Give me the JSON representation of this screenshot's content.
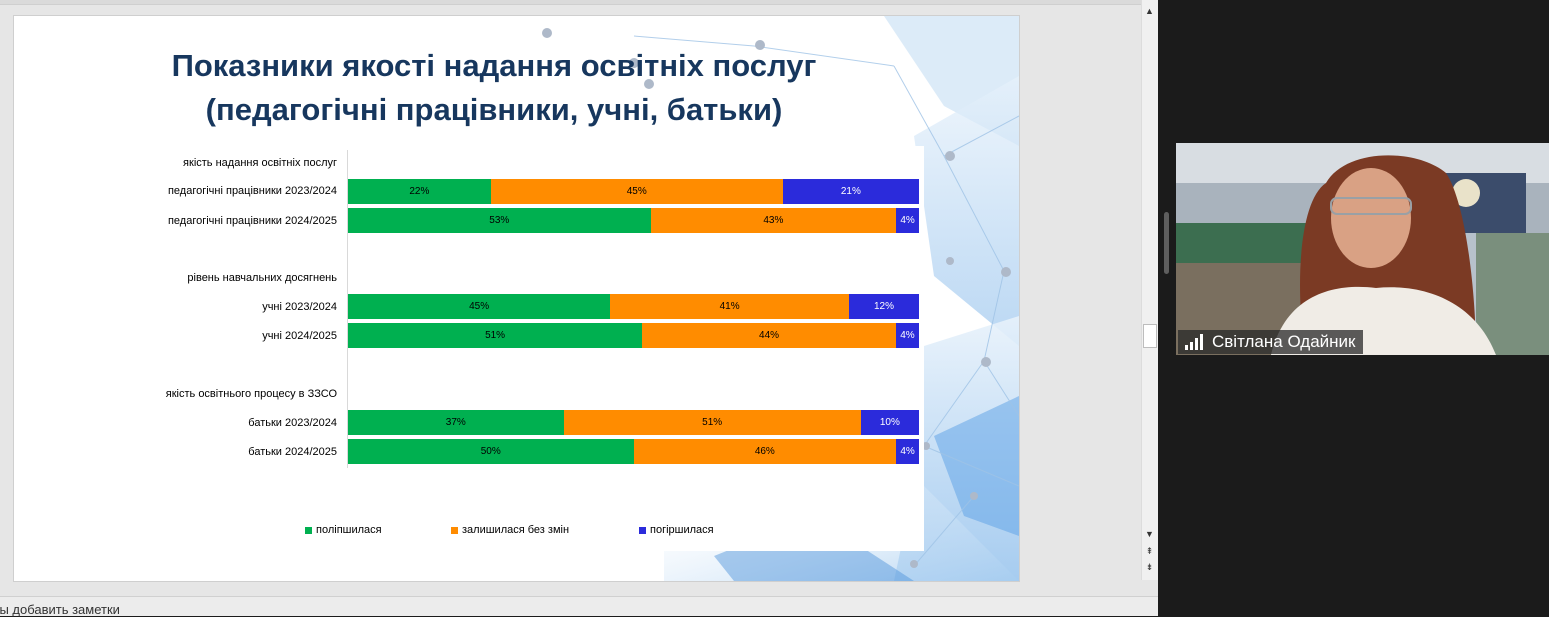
{
  "slide": {
    "title_line1": "Показники якості надання освітніх послуг",
    "title_line2": "(педагогічні працівники, учні, батьки)"
  },
  "chart_data": {
    "type": "bar",
    "orientation": "horizontal",
    "stacked": "100%",
    "group_headers": [
      "якість надання освітніх послуг",
      "рівень навчальних досягнень",
      "якість освітнього процесу в ЗЗСО"
    ],
    "categories": [
      "педагогічні працівники 2023/2024",
      "педагогічні працівники 2024/2025",
      "учні 2023/2024",
      "учні 2024/2025",
      "батьки 2023/2024",
      "батьки 2024/2025"
    ],
    "series": [
      {
        "name": "поліпшилася",
        "color": "#00b050",
        "values": [
          22,
          53,
          45,
          51,
          37,
          50
        ]
      },
      {
        "name": "залишилася без змін",
        "color": "#ff8c00",
        "values": [
          45,
          43,
          41,
          44,
          51,
          46
        ]
      },
      {
        "name": "погіршилася",
        "color": "#2b2bdb",
        "values": [
          21,
          4,
          12,
          4,
          10,
          4
        ]
      }
    ],
    "data_labels": [
      [
        "22%",
        "45%",
        "21%"
      ],
      [
        "53%",
        "43%",
        "4%"
      ],
      [
        "45%",
        "41%",
        "12%"
      ],
      [
        "51%",
        "44%",
        "4%"
      ],
      [
        "37%",
        "51%",
        "10%"
      ],
      [
        "50%",
        "46%",
        "4%"
      ]
    ],
    "legend_position": "bottom"
  },
  "participant": {
    "name": "Світлана Одайник",
    "signal_icon": "signal-bars-icon"
  },
  "notes": {
    "placeholder": "бы добавить заметки"
  }
}
